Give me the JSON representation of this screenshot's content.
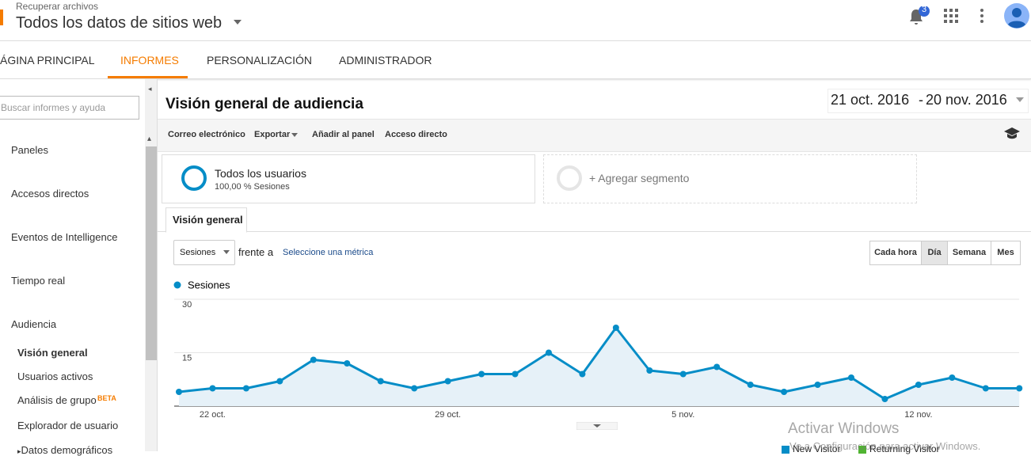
{
  "header": {
    "breadcrumb": "Recuperar archivos",
    "property": "Todos los datos de sitios web",
    "notifications": "3"
  },
  "tabs": [
    "ÁGINA PRINCIPAL",
    "INFORMES",
    "PERSONALIZACIÓN",
    "ADMINISTRADOR"
  ],
  "sidebar": {
    "search_placeholder": "Buscar informes y ayuda",
    "sections": [
      "Paneles",
      "Accesos directos",
      "Eventos de Intelligence",
      "Tiempo real",
      "Audiencia"
    ],
    "audience_items": [
      "Visión general",
      "Usuarios activos",
      "Análisis de grupo",
      "Explorador de usuario",
      "Datos demográficos"
    ],
    "beta": "BETA"
  },
  "report": {
    "title": "Visión general de audiencia",
    "date_start": "21 oct. 2016",
    "date_sep": "-",
    "date_end": "20 nov. 2016",
    "toolbar": [
      "Correo electrónico",
      "Exportar",
      "Añadir al panel",
      "Acceso directo"
    ],
    "segment": {
      "name": "Todos los usuarios",
      "detail": "100,00 % Sesiones"
    },
    "add_segment": "+ Agregar segmento",
    "tab": "Visión general",
    "metric": "Sesiones",
    "versus": "frente a",
    "select_metric": "Seleccione una métrica",
    "granularity": [
      "Cada hora",
      "Día",
      "Semana",
      "Mes"
    ]
  },
  "chart_data": {
    "type": "line",
    "categories": [
      null,
      "22 oct.",
      null,
      null,
      null,
      null,
      null,
      null,
      "29 oct.",
      null,
      null,
      null,
      null,
      null,
      null,
      "5 nov.",
      null,
      null,
      null,
      null,
      null,
      null,
      "12 nov.",
      null,
      null,
      null
    ],
    "series": [
      {
        "name": "Sesiones",
        "color": "#058dc7",
        "values": [
          4,
          5,
          5,
          7,
          13,
          12,
          7,
          5,
          7,
          9,
          9,
          15,
          9,
          22,
          10,
          9,
          11,
          6,
          4,
          6,
          8,
          2,
          6,
          8,
          5,
          5
        ]
      }
    ],
    "ylim": [
      0,
      30
    ],
    "yticks": [
      15,
      30
    ],
    "grid": true
  },
  "bottom_legend": [
    "New Visitor",
    "Returning Visitor"
  ],
  "watermark": {
    "title": "Activar Windows",
    "subtitle": "Ve a Configuración para activar Windows."
  }
}
